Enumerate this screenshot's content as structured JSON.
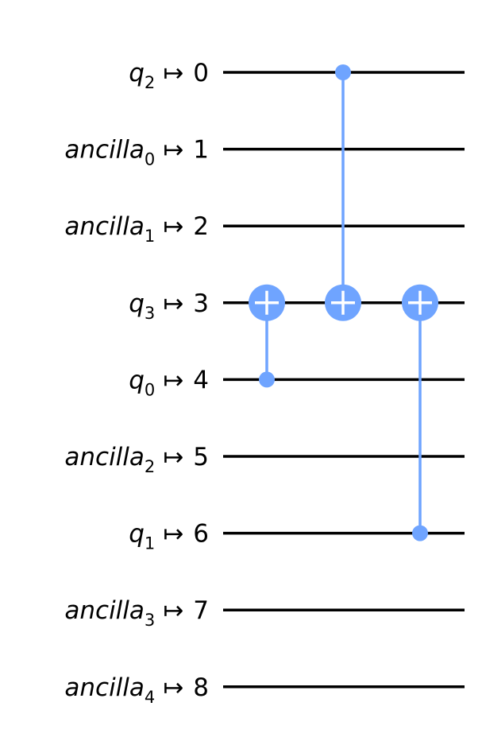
{
  "colors": {
    "wire": "#000000",
    "gate": "#6fa4ff",
    "gate_symbol": "#ffffff",
    "background": "#ffffff"
  },
  "arrow": "↦",
  "wires": [
    {
      "reg": "q",
      "sub": "2",
      "index": "0"
    },
    {
      "reg": "ancilla",
      "sub": "0",
      "index": "1"
    },
    {
      "reg": "ancilla",
      "sub": "1",
      "index": "2"
    },
    {
      "reg": "q",
      "sub": "3",
      "index": "3"
    },
    {
      "reg": "q",
      "sub": "0",
      "index": "4"
    },
    {
      "reg": "ancilla",
      "sub": "2",
      "index": "5"
    },
    {
      "reg": "q",
      "sub": "1",
      "index": "6"
    },
    {
      "reg": "ancilla",
      "sub": "3",
      "index": "7"
    },
    {
      "reg": "ancilla",
      "sub": "4",
      "index": "8"
    }
  ],
  "gates": [
    {
      "type": "cx",
      "control": 4,
      "target": 3,
      "column": 0
    },
    {
      "type": "cx",
      "control": 0,
      "target": 3,
      "column": 1
    },
    {
      "type": "cx",
      "control": 6,
      "target": 3,
      "column": 2
    }
  ]
}
